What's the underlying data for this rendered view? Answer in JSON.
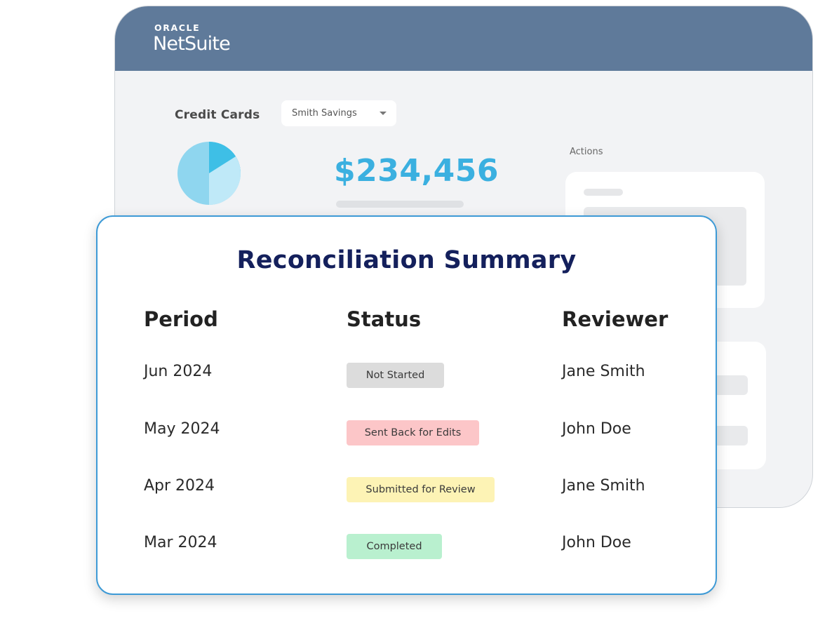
{
  "brand": {
    "top": "ORACLE",
    "main": "NetSuite"
  },
  "dashboard": {
    "section_label": "Credit Cards",
    "account_select": "Smith Savings",
    "amount": "$234,456",
    "actions_label": "Actions",
    "pie_colors": [
      "#8fd6ef",
      "#bfe9f8",
      "#3ebfe6"
    ]
  },
  "summary": {
    "title": "Reconciliation Summary",
    "columns": {
      "period": "Period",
      "status": "Status",
      "reviewer": "Reviewer"
    },
    "rows": [
      {
        "period": "Jun 2024",
        "status": "Not Started",
        "reviewer": "Jane Smith",
        "status_color": "#dcdcdc"
      },
      {
        "period": "May 2024",
        "status": "Sent Back for Edits",
        "reviewer": "John Doe",
        "status_color": "#fcc6c8"
      },
      {
        "period": "Apr 2024",
        "status": "Submitted for Review",
        "reviewer": "Jane Smith",
        "status_color": "#fdf3b5"
      },
      {
        "period": "Mar 2024",
        "status": "Completed",
        "reviewer": "John Doe",
        "status_color": "#b9f0cf"
      }
    ]
  }
}
